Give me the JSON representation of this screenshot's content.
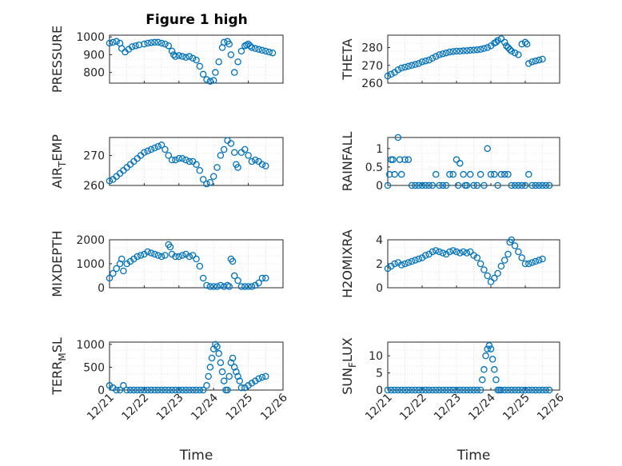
{
  "figure": {
    "title": "Figure 1 high",
    "marker_color": "#0072BD"
  },
  "chart_data": [
    {
      "type": "scatter",
      "ylabel": "PRESSURE",
      "xlim": [
        0,
        5
      ],
      "ylim": [
        740,
        1010
      ],
      "yticks": [
        800,
        900,
        1000
      ],
      "xticks": [],
      "xlabel": "",
      "x": [
        0.0,
        0.1,
        0.2,
        0.3,
        0.35,
        0.45,
        0.55,
        0.65,
        0.75,
        0.85,
        1.0,
        1.1,
        1.2,
        1.3,
        1.4,
        1.5,
        1.6,
        1.7,
        1.8,
        1.85,
        1.9,
        2.0,
        2.1,
        2.2,
        2.3,
        2.4,
        2.5,
        2.6,
        2.7,
        2.8,
        2.9,
        3.0,
        3.05,
        3.15,
        3.25,
        3.3,
        3.4,
        3.45,
        3.5,
        3.6,
        3.7,
        3.8,
        3.9,
        3.95,
        4.0,
        4.05,
        4.1,
        4.2,
        4.3,
        4.4,
        4.5,
        4.6,
        4.7
      ],
      "y": [
        965,
        970,
        975,
        965,
        935,
        915,
        930,
        945,
        950,
        955,
        960,
        965,
        968,
        970,
        970,
        965,
        960,
        950,
        920,
        900,
        890,
        895,
        890,
        885,
        890,
        880,
        870,
        835,
        790,
        760,
        750,
        755,
        800,
        860,
        940,
        970,
        975,
        960,
        900,
        800,
        860,
        920,
        950,
        955,
        960,
        950,
        940,
        935,
        930,
        925,
        920,
        915,
        910
      ]
    },
    {
      "type": "scatter",
      "ylabel": "THETA",
      "xlim": [
        0,
        5
      ],
      "ylim": [
        260,
        287
      ],
      "yticks": [
        260,
        270,
        280
      ],
      "xticks": [],
      "xlabel": "",
      "x": [
        0.0,
        0.1,
        0.2,
        0.3,
        0.4,
        0.5,
        0.6,
        0.7,
        0.8,
        0.9,
        1.0,
        1.1,
        1.2,
        1.3,
        1.4,
        1.5,
        1.6,
        1.7,
        1.8,
        1.9,
        2.0,
        2.1,
        2.2,
        2.3,
        2.4,
        2.5,
        2.6,
        2.7,
        2.8,
        2.9,
        3.0,
        3.1,
        3.15,
        3.2,
        3.3,
        3.4,
        3.45,
        3.5,
        3.55,
        3.6,
        3.7,
        3.8,
        3.9,
        4.0,
        4.05,
        4.1,
        4.2,
        4.3,
        4.4,
        4.5
      ],
      "y": [
        264,
        265,
        266,
        267.5,
        268.5,
        269,
        269.5,
        270,
        270.5,
        271,
        272,
        272.5,
        273,
        274,
        275,
        276,
        276.5,
        277,
        277.5,
        277.8,
        278,
        278,
        278.2,
        278.3,
        278.5,
        278.6,
        278.8,
        279,
        279.5,
        280,
        281,
        282.5,
        283,
        284,
        285,
        283,
        281,
        280,
        279,
        278,
        277,
        276,
        282,
        283,
        282,
        271,
        272,
        272.5,
        273,
        273.5
      ]
    },
    {
      "type": "scatter",
      "ylabel": "AIR_TEMP",
      "xlim": [
        0,
        5
      ],
      "ylim": [
        260,
        276
      ],
      "yticks": [
        260,
        270
      ],
      "xticks": [],
      "xlabel": "",
      "x": [
        0.0,
        0.1,
        0.2,
        0.3,
        0.4,
        0.5,
        0.6,
        0.7,
        0.8,
        0.9,
        1.0,
        1.1,
        1.2,
        1.3,
        1.4,
        1.5,
        1.6,
        1.7,
        1.8,
        1.9,
        2.0,
        2.1,
        2.2,
        2.3,
        2.4,
        2.5,
        2.6,
        2.7,
        2.8,
        2.9,
        3.0,
        3.1,
        3.2,
        3.3,
        3.4,
        3.5,
        3.6,
        3.65,
        3.7,
        3.8,
        3.9,
        4.0,
        4.1,
        4.2,
        4.3,
        4.4,
        4.5
      ],
      "y": [
        261.5,
        262,
        263,
        264,
        265,
        266,
        267,
        268,
        269,
        270,
        271,
        271.5,
        272,
        272.5,
        273,
        273.5,
        272,
        270,
        268.5,
        268.5,
        269,
        269,
        268.5,
        268,
        268,
        267,
        265,
        262,
        260.5,
        261,
        263,
        266,
        270,
        272,
        275,
        274,
        271,
        267,
        266,
        271,
        272,
        270,
        268,
        268.5,
        268,
        267,
        266.5
      ]
    },
    {
      "type": "scatter",
      "ylabel": "RAINFALL",
      "xlim": [
        0,
        5
      ],
      "ylim": [
        0,
        1.3
      ],
      "yticks": [
        0,
        0.5,
        1
      ],
      "xticks": [],
      "xlabel": "",
      "x": [
        0.0,
        0.05,
        0.1,
        0.15,
        0.2,
        0.3,
        0.35,
        0.4,
        0.5,
        0.6,
        0.7,
        0.8,
        0.9,
        1.0,
        1.1,
        1.2,
        1.3,
        1.4,
        1.5,
        1.6,
        1.7,
        1.8,
        1.9,
        2.0,
        2.05,
        2.1,
        2.2,
        2.25,
        2.3,
        2.4,
        2.5,
        2.6,
        2.7,
        2.8,
        2.9,
        3.0,
        3.1,
        3.2,
        3.3,
        3.4,
        3.5,
        3.6,
        3.7,
        3.8,
        3.9,
        4.0,
        4.1,
        4.2,
        4.3,
        4.4,
        4.5,
        4.6,
        4.7
      ],
      "y": [
        0,
        0.3,
        0.7,
        0.7,
        0.3,
        1.3,
        0.7,
        0.3,
        0.7,
        0.7,
        0,
        0,
        0,
        0,
        0,
        0,
        0,
        0.3,
        0,
        0,
        0,
        0.3,
        0.3,
        0.7,
        0,
        0.6,
        0.3,
        0,
        0,
        0.3,
        0,
        0,
        0.3,
        0,
        1.0,
        0.3,
        0.3,
        0,
        0.3,
        0.3,
        0.3,
        0,
        0,
        0,
        0,
        0,
        0.3,
        0,
        0,
        0,
        0,
        0,
        0
      ]
    },
    {
      "type": "scatter",
      "ylabel": "MIXDEPTH",
      "xlim": [
        0,
        5
      ],
      "ylim": [
        0,
        2000
      ],
      "yticks": [
        0,
        1000,
        2000
      ],
      "xticks": [],
      "xlabel": "",
      "x": [
        0.0,
        0.1,
        0.2,
        0.3,
        0.35,
        0.4,
        0.5,
        0.6,
        0.7,
        0.8,
        0.9,
        1.0,
        1.1,
        1.2,
        1.3,
        1.4,
        1.5,
        1.6,
        1.7,
        1.75,
        1.8,
        1.9,
        2.0,
        2.1,
        2.2,
        2.3,
        2.4,
        2.5,
        2.6,
        2.7,
        2.8,
        2.9,
        3.0,
        3.1,
        3.2,
        3.3,
        3.4,
        3.45,
        3.5,
        3.55,
        3.6,
        3.7,
        3.8,
        3.9,
        4.0,
        4.1,
        4.2,
        4.3,
        4.4,
        4.5
      ],
      "y": [
        400,
        600,
        800,
        1000,
        1200,
        700,
        1000,
        1100,
        1200,
        1300,
        1350,
        1400,
        1500,
        1450,
        1400,
        1350,
        1300,
        1350,
        1800,
        1700,
        1400,
        1300,
        1300,
        1350,
        1400,
        1300,
        1350,
        1200,
        900,
        400,
        100,
        50,
        50,
        50,
        100,
        50,
        100,
        50,
        1200,
        1100,
        500,
        300,
        50,
        50,
        50,
        50,
        100,
        200,
        400,
        400
      ]
    },
    {
      "type": "scatter",
      "ylabel": "H2OMIXRA",
      "xlim": [
        0,
        5
      ],
      "ylim": [
        0,
        4
      ],
      "yticks": [
        0,
        2,
        4
      ],
      "xticks": [],
      "xlabel": "",
      "x": [
        0.0,
        0.1,
        0.2,
        0.3,
        0.4,
        0.5,
        0.6,
        0.7,
        0.8,
        0.9,
        1.0,
        1.1,
        1.2,
        1.3,
        1.4,
        1.5,
        1.6,
        1.7,
        1.8,
        1.9,
        2.0,
        2.1,
        2.2,
        2.3,
        2.4,
        2.5,
        2.6,
        2.7,
        2.8,
        2.9,
        3.0,
        3.1,
        3.2,
        3.3,
        3.4,
        3.5,
        3.55,
        3.6,
        3.7,
        3.8,
        3.9,
        4.0,
        4.1,
        4.2,
        4.3,
        4.4,
        4.5
      ],
      "y": [
        1.6,
        1.8,
        2.0,
        2.1,
        1.9,
        2.0,
        2.1,
        2.2,
        2.3,
        2.4,
        2.5,
        2.7,
        2.8,
        3.0,
        3.1,
        3.0,
        2.9,
        2.8,
        3.0,
        3.1,
        3.0,
        2.9,
        3.0,
        2.9,
        3.0,
        2.7,
        2.5,
        2.0,
        1.5,
        1.0,
        0.5,
        0.8,
        1.2,
        1.8,
        2.3,
        2.8,
        3.8,
        4.0,
        3.5,
        3.0,
        2.5,
        2.0,
        2.0,
        2.1,
        2.2,
        2.3,
        2.4
      ]
    },
    {
      "type": "scatter",
      "ylabel": "TERR_MSL",
      "xlim": [
        0,
        5
      ],
      "ylim": [
        0,
        1050
      ],
      "yticks": [
        0,
        500,
        1000
      ],
      "xticks": [
        "12/21",
        "12/22",
        "12/23",
        "12/24",
        "12/25",
        "12/26"
      ],
      "xlabel": "Time",
      "x": [
        0.0,
        0.1,
        0.2,
        0.3,
        0.4,
        0.5,
        0.6,
        0.7,
        0.8,
        0.9,
        1.0,
        1.1,
        1.2,
        1.3,
        1.4,
        1.5,
        1.6,
        1.7,
        1.8,
        1.9,
        2.0,
        2.1,
        2.2,
        2.3,
        2.4,
        2.5,
        2.6,
        2.7,
        2.8,
        2.85,
        2.9,
        2.95,
        3.0,
        3.05,
        3.1,
        3.15,
        3.2,
        3.25,
        3.3,
        3.35,
        3.4,
        3.45,
        3.5,
        3.55,
        3.6,
        3.65,
        3.7,
        3.75,
        3.8,
        3.9,
        4.0,
        4.1,
        4.2,
        4.3,
        4.4,
        4.5
      ],
      "y": [
        100,
        50,
        0,
        0,
        100,
        0,
        0,
        0,
        0,
        0,
        0,
        0,
        0,
        0,
        0,
        0,
        0,
        0,
        0,
        0,
        0,
        0,
        0,
        0,
        0,
        0,
        0,
        0,
        100,
        300,
        500,
        700,
        900,
        1000,
        950,
        800,
        600,
        400,
        200,
        0,
        0,
        300,
        600,
        700,
        500,
        400,
        300,
        200,
        50,
        50,
        100,
        150,
        200,
        250,
        280,
        300
      ]
    },
    {
      "type": "scatter",
      "ylabel": "SUN_FLUX",
      "xlim": [
        0,
        5
      ],
      "ylim": [
        0,
        14
      ],
      "yticks": [
        0,
        5,
        10
      ],
      "xticks": [
        "12/21",
        "12/22",
        "12/23",
        "12/24",
        "12/25",
        "12/26"
      ],
      "xlabel": "Time",
      "x": [
        0.0,
        0.1,
        0.2,
        0.3,
        0.4,
        0.5,
        0.6,
        0.7,
        0.8,
        0.9,
        1.0,
        1.1,
        1.2,
        1.3,
        1.4,
        1.5,
        1.6,
        1.7,
        1.8,
        1.9,
        2.0,
        2.1,
        2.2,
        2.3,
        2.4,
        2.5,
        2.6,
        2.7,
        2.75,
        2.8,
        2.85,
        2.9,
        2.95,
        3.0,
        3.05,
        3.1,
        3.15,
        3.2,
        3.25,
        3.3,
        3.4,
        3.5,
        3.6,
        3.7,
        3.8,
        3.9,
        4.0,
        4.1,
        4.2,
        4.3,
        4.4,
        4.5,
        4.6,
        4.7
      ],
      "y": [
        0,
        0,
        0,
        0,
        0,
        0,
        0,
        0,
        0,
        0,
        0,
        0,
        0,
        0,
        0,
        0,
        0,
        0,
        0,
        0,
        0,
        0,
        0,
        0,
        0,
        0,
        0,
        0,
        3,
        6,
        10,
        12,
        13,
        12,
        9,
        6,
        3,
        0,
        0,
        0,
        0,
        0,
        0,
        0,
        0,
        0,
        0,
        0,
        0,
        0,
        0,
        0,
        0,
        0
      ]
    }
  ]
}
